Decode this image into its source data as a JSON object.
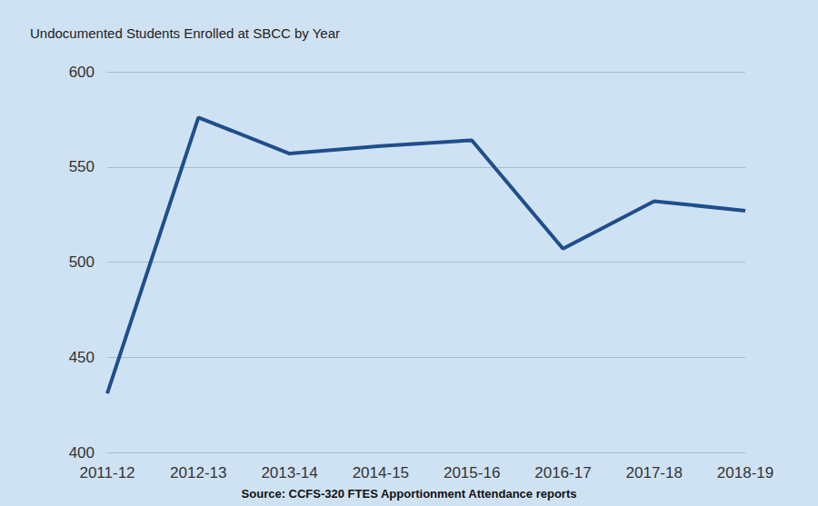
{
  "chart_data": {
    "type": "line",
    "title": "Undocumented Students Enrolled at SBCC by Year",
    "annotation": "Source: CCFS-320 FTES Apportionment Attendance reports",
    "categories": [
      "2011-12",
      "2012-13",
      "2013-14",
      "2014-15",
      "2015-16",
      "2016-17",
      "2017-18",
      "2018-19"
    ],
    "values": [
      431,
      576,
      557,
      561,
      564,
      507,
      532,
      527
    ],
    "color": "#1f4e8c",
    "ylim": [
      400,
      600
    ],
    "yticks": [
      400,
      450,
      500,
      550,
      600
    ],
    "grid": true
  }
}
